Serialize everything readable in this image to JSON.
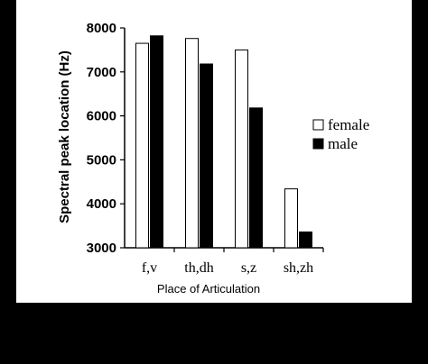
{
  "chart_data": {
    "type": "bar",
    "categories": [
      "f,v",
      "th,dh",
      "s,z",
      "sh,zh"
    ],
    "series": [
      {
        "name": "female",
        "values": [
          7650,
          7760,
          7500,
          4340
        ],
        "color": "#ffffff"
      },
      {
        "name": "male",
        "values": [
          7820,
          7180,
          6180,
          3360
        ],
        "color": "#000000"
      }
    ],
    "xlabel": "Place of Articulation",
    "ylabel": "Spectral peak location (Hz)",
    "ylim": [
      3000,
      8000
    ],
    "yticks": [
      "3000",
      "4000",
      "5000",
      "6000",
      "7000",
      "8000"
    ],
    "legend_position": "right",
    "grid": false
  }
}
